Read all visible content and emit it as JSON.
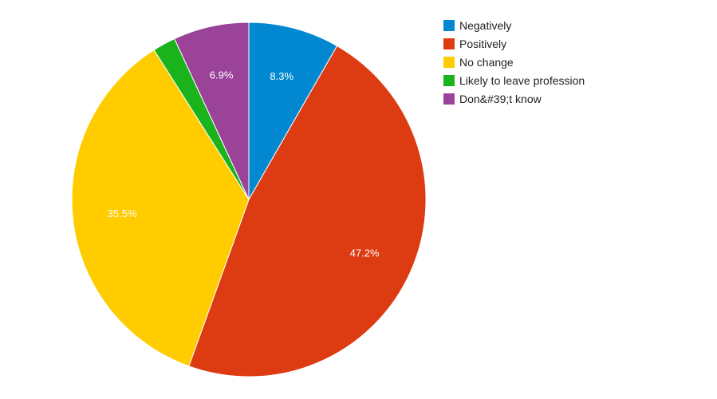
{
  "chart_data": {
    "type": "pie",
    "title": "",
    "slices": [
      {
        "label": "Negatively",
        "value": 8.3,
        "color": "#0288d1",
        "data_label": "8.3%"
      },
      {
        "label": "Positively",
        "value": 47.2,
        "color": "#dd3b12",
        "data_label": "47.2%"
      },
      {
        "label": "No change",
        "value": 35.5,
        "color": "#ffcc00",
        "data_label": "35.5%"
      },
      {
        "label": "Likely to leave profession",
        "value": 2.1,
        "color": "#1bb31b",
        "data_label": ""
      },
      {
        "label": "Don&#39;t know",
        "value": 6.9,
        "color": "#9a4398",
        "data_label": "6.9%"
      }
    ],
    "legend_position": "right",
    "start_angle": "top, clockwise"
  }
}
